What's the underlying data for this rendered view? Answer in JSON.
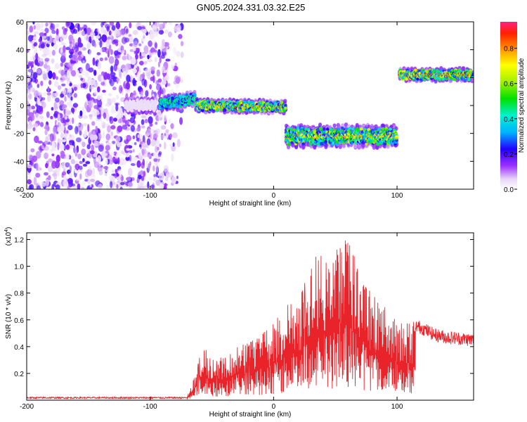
{
  "title": "GN05.2024.331.03.32.E25",
  "chart_data": [
    {
      "type": "heatmap",
      "ylabel": "Frequency (Hz)",
      "xlabel": "Height of straight line (km)",
      "xlim": [
        -200,
        162
      ],
      "ylim": [
        -60,
        60
      ],
      "xticks": [
        -200,
        -100,
        0,
        100
      ],
      "yticks": [
        -60,
        -40,
        -20,
        0,
        20,
        40,
        60
      ],
      "colorbar": {
        "label": "Normalized spectral amplitude",
        "range": [
          0,
          0.95
        ],
        "ticks": [
          0.0,
          0.2,
          0.4,
          0.6,
          0.8
        ]
      },
      "segments": [
        {
          "x0": -120,
          "x1": -95,
          "y0": 0,
          "y1": 0,
          "peak": 0.05
        },
        {
          "x0": -92,
          "x1": -63,
          "y0": 1,
          "y1": 5,
          "peak": 0.55
        },
        {
          "x0": -63,
          "x1": 10,
          "y0": 0,
          "y1": -1,
          "peak": 0.9
        },
        {
          "x0": 10,
          "x1": 100,
          "y0": -22,
          "y1": -22,
          "peak": 0.85
        },
        {
          "x0": 102,
          "x1": 162,
          "y0": 22,
          "y1": 22,
          "peak": 0.95
        }
      ]
    },
    {
      "type": "line",
      "ylabel": "SNR (10 * v/v)",
      "yunit": "(x10",
      "yunit_exp": "4",
      "yunit_close": ")",
      "xlabel": "Height of straight line (km)",
      "xlim": [
        -200,
        162
      ],
      "ylim": [
        0,
        1.25
      ],
      "xticks": [
        -200,
        -100,
        0,
        100
      ],
      "yticks": [
        0.2,
        0.4,
        0.6,
        0.8,
        1.0,
        1.2
      ],
      "color": "#e8232a",
      "envelope": [
        [
          -200,
          0.02
        ],
        [
          -80,
          0.03
        ],
        [
          -68,
          0.06
        ],
        [
          -57,
          0.42
        ],
        [
          -50,
          0.3
        ],
        [
          -30,
          0.4
        ],
        [
          -10,
          0.5
        ],
        [
          0,
          0.57
        ],
        [
          10,
          0.72
        ],
        [
          20,
          0.75
        ],
        [
          30,
          1.0
        ],
        [
          38,
          1.2
        ],
        [
          47,
          1.03
        ],
        [
          55,
          1.25
        ],
        [
          62,
          1.17
        ],
        [
          70,
          0.98
        ],
        [
          80,
          0.8
        ],
        [
          90,
          0.7
        ],
        [
          100,
          0.63
        ],
        [
          110,
          0.6
        ],
        [
          120,
          0.57
        ],
        [
          130,
          0.52
        ],
        [
          140,
          0.5
        ],
        [
          162,
          0.48
        ]
      ]
    }
  ]
}
